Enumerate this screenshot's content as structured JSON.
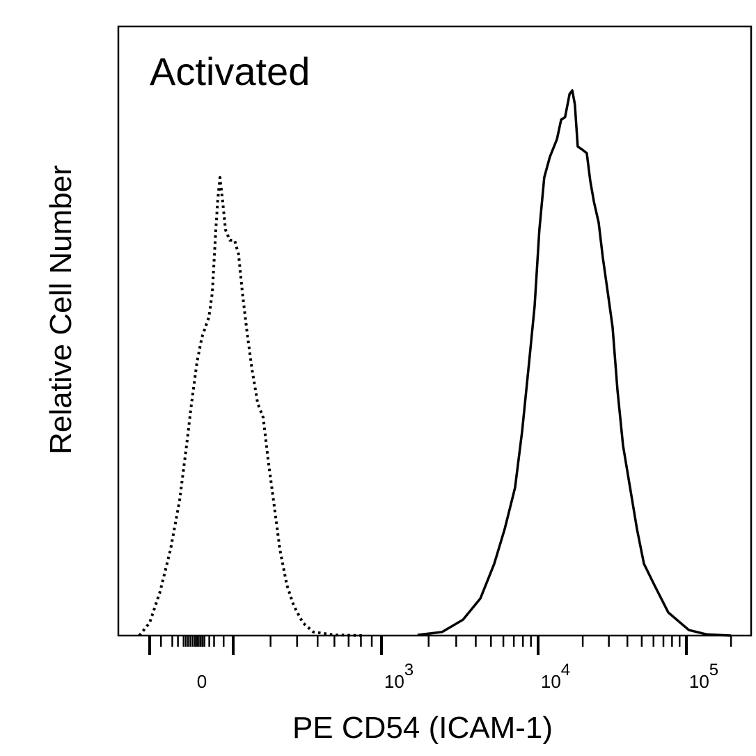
{
  "chart_data": {
    "type": "line",
    "title": "Activated",
    "xlabel": "PE CD54 (ICAM-1)",
    "ylabel": "Relative Cell Number",
    "x_scale": "biexponential",
    "xlim": [
      -250,
      200000
    ],
    "ylim": [
      0,
      100
    ],
    "grid": false,
    "x_tick_labels": [
      {
        "value": 0,
        "base": "0",
        "exp": ""
      },
      {
        "value": 1000,
        "base": "10",
        "exp": "3"
      },
      {
        "value": 10000,
        "base": "10",
        "exp": "4"
      },
      {
        "value": 100000,
        "base": "10",
        "exp": "5"
      }
    ],
    "series": [
      {
        "style": "dotted",
        "color": "#000000",
        "x": [
          -246,
          -200,
          -154,
          -108,
          -68,
          -37,
          -15,
          11,
          36,
          73,
          91,
          109,
          120,
          131,
          145,
          160,
          182,
          203,
          212,
          221,
          233,
          245,
          261,
          277,
          292,
          310,
          332,
          358,
          386,
          426,
          477,
          598,
          809
        ],
        "y": [
          0,
          2.1,
          7.2,
          14.1,
          22.1,
          31.2,
          38.1,
          44.9,
          48.9,
          52.3,
          56.3,
          66.6,
          71.8,
          75.2,
          71.2,
          66.6,
          64.9,
          64.9,
          62.6,
          56.3,
          49.5,
          43.8,
          38.1,
          35.8,
          28.9,
          22.1,
          14.1,
          8.3,
          4.9,
          2.1,
          0.6,
          0.1,
          0
        ]
      },
      {
        "style": "solid",
        "color": "#000000",
        "x": [
          1700,
          2440,
          3310,
          4280,
          5250,
          6120,
          7130,
          7900,
          8760,
          9500,
          10200,
          11000,
          12000,
          13400,
          14300,
          15200,
          16300,
          17000,
          17700,
          18500,
          19800,
          21300,
          22500,
          23800,
          25600,
          27300,
          29500,
          31800,
          34300,
          37400,
          41700,
          46400,
          51700,
          60800,
          75500,
          104000,
          137000,
          200000
        ],
        "y": [
          0.1,
          0.6,
          2.6,
          6.1,
          11.8,
          17.5,
          24.3,
          33.5,
          44.9,
          54.1,
          66.6,
          75.2,
          78.6,
          81.5,
          84.7,
          85.1,
          88.9,
          89.5,
          87.2,
          80.3,
          79.8,
          79.2,
          74.6,
          71.2,
          67.8,
          62.1,
          56.3,
          50.6,
          40.3,
          31.2,
          24.3,
          17.5,
          11.8,
          8.3,
          3.8,
          0.9,
          0.2,
          0
        ]
      }
    ]
  }
}
